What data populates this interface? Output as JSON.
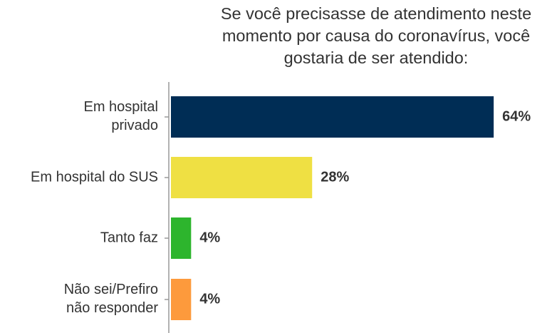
{
  "chart_data": {
    "type": "bar",
    "orientation": "horizontal",
    "title": "Se você precisasse de atendimento neste momento por causa do coronavírus, você gostaria de ser atendido:",
    "categories": [
      "Em hospital privado",
      "Em hospital do SUS",
      "Tanto faz",
      "Não sei/Prefiro não responder"
    ],
    "values": [
      64,
      28,
      4,
      4
    ],
    "value_labels": [
      "64%",
      "28%",
      "4%",
      "4%"
    ],
    "colors": [
      "#002d55",
      "#efe043",
      "#2db52d",
      "#fd9a3c"
    ]
  }
}
